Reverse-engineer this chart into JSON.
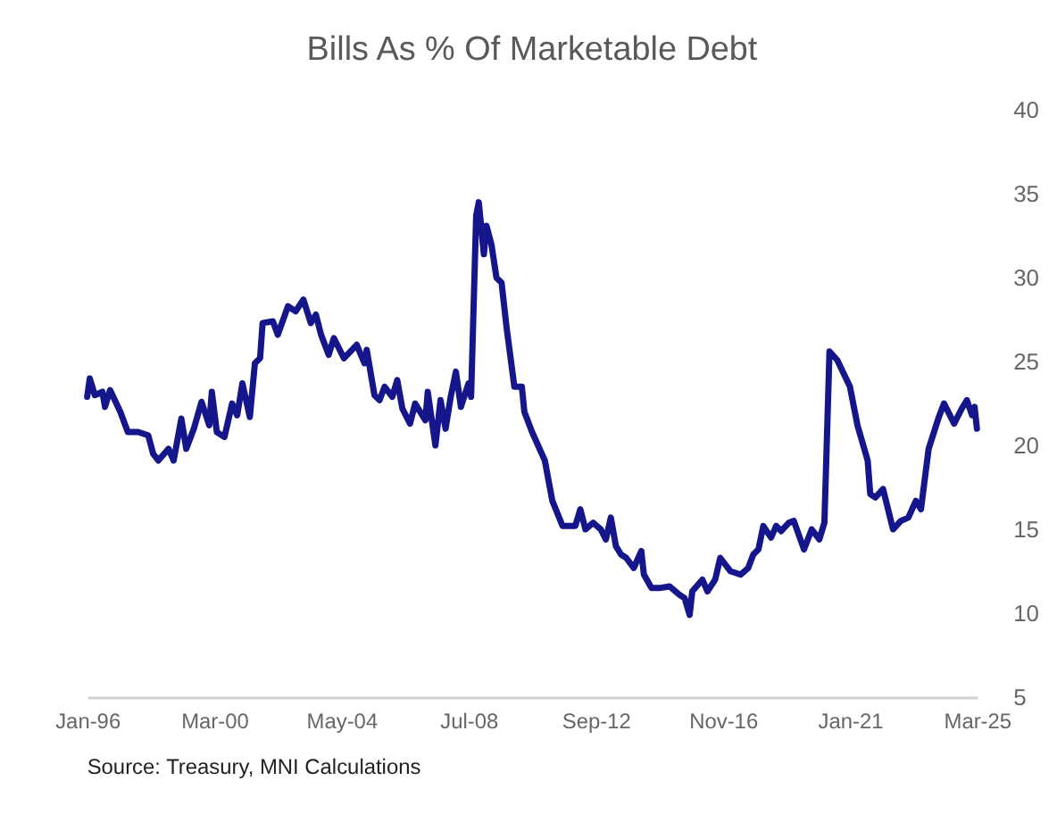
{
  "chart_data": {
    "type": "line",
    "title": "Bills As % Of Marketable Debt",
    "x": [
      "1996-01",
      "1996-02",
      "1996-04",
      "1996-07",
      "1996-08",
      "1996-10",
      "1997-02",
      "1997-05",
      "1997-09",
      "1998-01",
      "1998-03",
      "1998-05",
      "1998-09",
      "1998-11",
      "1999-02",
      "1999-04",
      "1999-07",
      "1999-10",
      "2000-01",
      "2000-02",
      "2000-04",
      "2000-07",
      "2000-10",
      "2000-12",
      "2001-02",
      "2001-05",
      "2001-07",
      "2001-09",
      "2001-10",
      "2002-02",
      "2002-04",
      "2002-08",
      "2002-11",
      "2003-02",
      "2003-05",
      "2003-07",
      "2003-09",
      "2003-12",
      "2004-02",
      "2004-06",
      "2004-11",
      "2005-02",
      "2005-03",
      "2005-06",
      "2005-08",
      "2005-10",
      "2006-01",
      "2006-03",
      "2006-05",
      "2006-08",
      "2006-10",
      "2007-02",
      "2007-03",
      "2007-06",
      "2007-08",
      "2007-10",
      "2007-12",
      "2008-02",
      "2008-04",
      "2008-07",
      "2008-08",
      "2008-10",
      "2008-11",
      "2009-01",
      "2009-02",
      "2009-04",
      "2009-06",
      "2009-08",
      "2009-10",
      "2010-01",
      "2010-04",
      "2010-05",
      "2010-08",
      "2011-01",
      "2011-04",
      "2011-08",
      "2012-01",
      "2012-03",
      "2012-05",
      "2012-08",
      "2012-11",
      "2013-01",
      "2013-03",
      "2013-05",
      "2013-07",
      "2013-09",
      "2013-12",
      "2014-03",
      "2014-04",
      "2014-07",
      "2014-10",
      "2015-02",
      "2015-06",
      "2015-08",
      "2015-10",
      "2015-11",
      "2016-03",
      "2016-05",
      "2016-08",
      "2016-10",
      "2017-02",
      "2017-06",
      "2017-09",
      "2017-11",
      "2018-01",
      "2018-03",
      "2018-06",
      "2018-08",
      "2018-10",
      "2019-01",
      "2019-03",
      "2019-07",
      "2019-10",
      "2020-01",
      "2020-03",
      "2020-05",
      "2020-08",
      "2021-01",
      "2021-04",
      "2021-08",
      "2021-09",
      "2021-11",
      "2022-02",
      "2022-06",
      "2022-09",
      "2022-12",
      "2023-03",
      "2023-05",
      "2023-08",
      "2023-12",
      "2024-02",
      "2024-06",
      "2024-09",
      "2024-11",
      "2025-01",
      "2025-02",
      "2025-03"
    ],
    "series": [
      {
        "color": "#15158c",
        "values": [
          22.9,
          24.0,
          23.0,
          23.2,
          22.3,
          23.3,
          22.0,
          20.8,
          20.8,
          20.6,
          19.5,
          19.1,
          19.8,
          19.1,
          21.6,
          19.8,
          21.0,
          22.6,
          21.2,
          23.2,
          20.8,
          20.5,
          22.5,
          21.8,
          23.7,
          21.7,
          24.9,
          25.2,
          27.3,
          27.4,
          26.6,
          28.3,
          28.0,
          28.7,
          27.3,
          27.8,
          26.6,
          25.4,
          26.4,
          25.2,
          26.0,
          24.9,
          25.7,
          23.0,
          22.7,
          23.5,
          22.9,
          23.9,
          22.2,
          21.3,
          22.5,
          21.5,
          23.2,
          20.0,
          22.7,
          21.0,
          22.9,
          24.4,
          22.3,
          23.7,
          22.9,
          33.7,
          34.5,
          31.4,
          33.1,
          32.0,
          30.0,
          29.7,
          27.0,
          23.5,
          23.5,
          22.0,
          20.8,
          19.1,
          16.7,
          15.2,
          15.2,
          16.2,
          15.0,
          15.4,
          15.0,
          14.4,
          15.7,
          14.0,
          13.5,
          13.3,
          12.7,
          13.7,
          12.3,
          11.5,
          11.5,
          11.6,
          11.1,
          10.9,
          9.9,
          11.3,
          12.0,
          11.3,
          12.0,
          13.3,
          12.5,
          12.3,
          12.7,
          13.5,
          13.8,
          15.2,
          14.5,
          15.2,
          14.9,
          15.4,
          15.5,
          13.8,
          15.0,
          14.4,
          15.4,
          25.6,
          25.1,
          23.5,
          21.2,
          19.1,
          17.1,
          16.9,
          17.4,
          15.0,
          15.5,
          15.7,
          16.7,
          16.2,
          19.8,
          21.7,
          22.5,
          21.3,
          22.2,
          22.7,
          21.8,
          22.3,
          21.0
        ]
      }
    ],
    "xlim": [
      "1996-01",
      "2025-03"
    ],
    "xticks": [
      {
        "value": "1996-01",
        "label": "Jan-96"
      },
      {
        "value": "2000-03",
        "label": "Mar-00"
      },
      {
        "value": "2004-05",
        "label": "May-04"
      },
      {
        "value": "2008-07",
        "label": "Jul-08"
      },
      {
        "value": "2012-09",
        "label": "Sep-12"
      },
      {
        "value": "2016-11",
        "label": "Nov-16"
      },
      {
        "value": "2021-01",
        "label": "Jan-21"
      },
      {
        "value": "2025-03",
        "label": "Mar-25"
      }
    ],
    "ylim": [
      5,
      40
    ],
    "yticks": [
      5,
      10,
      15,
      20,
      25,
      30,
      35,
      40
    ],
    "grid": false,
    "line_style": "solid",
    "annotations": [
      "Source: Treasury, MNI Calculations"
    ]
  }
}
